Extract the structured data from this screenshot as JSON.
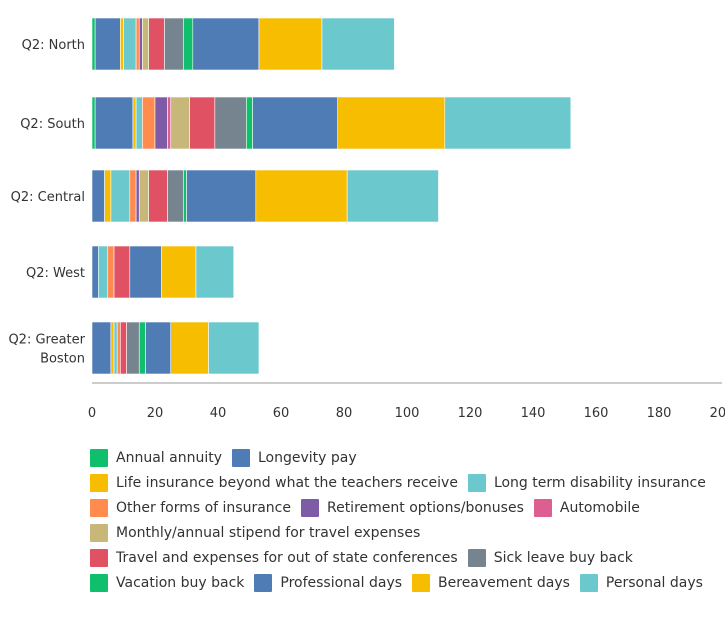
{
  "chart_data": {
    "type": "bar",
    "orientation": "horizontal",
    "stacked": true,
    "categories": [
      "Q2: North",
      "Q2: South",
      "Q2: Central",
      "Q2: West",
      "Q2: Greater Boston"
    ],
    "category_lines": [
      [
        "Q2: North"
      ],
      [
        "Q2: South"
      ],
      [
        "Q2: Central"
      ],
      [
        "Q2: West"
      ],
      [
        "Q2: Greater",
        "Boston"
      ]
    ],
    "xlim": [
      0,
      200
    ],
    "xticks": [
      0,
      20,
      40,
      60,
      80,
      100,
      120,
      140,
      160,
      180,
      200
    ],
    "grid": false,
    "legend_position": "bottom",
    "series": [
      {
        "name": "Annual annuity",
        "color": "#0fbf6c",
        "values": [
          1,
          1,
          0,
          0,
          0
        ]
      },
      {
        "name": "Longevity pay",
        "color": "#507cb6",
        "values": [
          8,
          12,
          4,
          2,
          6
        ]
      },
      {
        "name": "Life insurance beyond what the teachers receive",
        "color": "#f7bd00",
        "values": [
          1,
          1,
          2,
          0,
          1
        ]
      },
      {
        "name": "Long term disability insurance",
        "color": "#6bc8cd",
        "values": [
          4,
          2,
          6,
          3,
          1
        ]
      },
      {
        "name": "Other forms of insurance",
        "color": "#ff8b4f",
        "values": [
          1,
          4,
          2,
          2,
          1
        ]
      },
      {
        "name": "Retirement options/bonuses",
        "color": "#7d5ba6",
        "values": [
          1,
          4,
          1,
          0,
          0
        ]
      },
      {
        "name": "Automobile",
        "color": "#dd5f91",
        "values": [
          0,
          1,
          0,
          0,
          0
        ]
      },
      {
        "name": "Monthly/annual stipend for travel expenses",
        "color": "#c7b879",
        "values": [
          2,
          6,
          3,
          0,
          0
        ]
      },
      {
        "name": "Travel and expenses for out of state conferences",
        "color": "#e05263",
        "values": [
          5,
          8,
          6,
          5,
          2
        ]
      },
      {
        "name": "Sick leave buy back",
        "color": "#76848f",
        "values": [
          6,
          10,
          5,
          0,
          4
        ]
      },
      {
        "name": "Vacation buy back",
        "color": "#0fbf6c",
        "values": [
          3,
          2,
          1,
          0,
          2
        ]
      },
      {
        "name": "Professional days",
        "color": "#507cb6",
        "values": [
          21,
          27,
          22,
          10,
          8
        ]
      },
      {
        "name": "Bereavement days",
        "color": "#f7bd00",
        "values": [
          20,
          34,
          29,
          11,
          12
        ]
      },
      {
        "name": "Personal days",
        "color": "#6bc8cd",
        "values": [
          23,
          40,
          29,
          12,
          16
        ]
      }
    ]
  }
}
